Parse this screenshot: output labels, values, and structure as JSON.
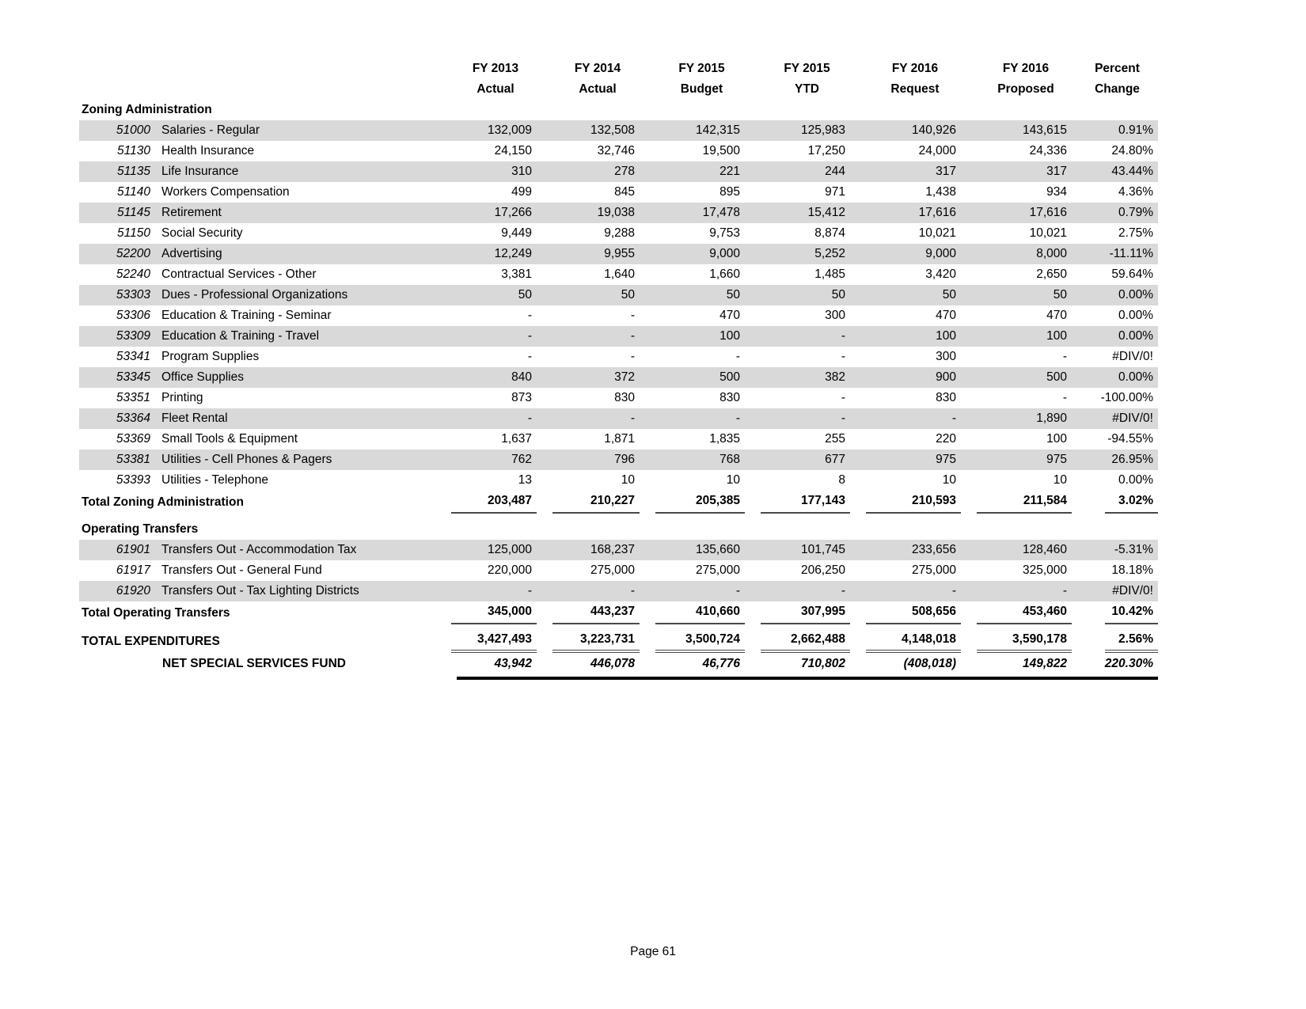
{
  "page": {
    "footer": "Page 61"
  },
  "colors": {
    "row_shade": "#d9d9d9",
    "total_rule": "#4a4a4a",
    "final_rule": "#000000"
  },
  "table": {
    "columns": [
      {
        "line1": "FY 2013",
        "line2": "Actual"
      },
      {
        "line1": "FY 2014",
        "line2": "Actual"
      },
      {
        "line1": "FY 2015",
        "line2": "Budget"
      },
      {
        "line1": "FY 2015",
        "line2": "YTD"
      },
      {
        "line1": "FY 2016",
        "line2": "Request"
      },
      {
        "line1": "FY 2016",
        "line2": "Proposed"
      },
      {
        "line1": "Percent",
        "line2": "Change"
      }
    ],
    "sections": [
      {
        "title": "Zoning Administration",
        "rows": [
          {
            "code": "51000",
            "name": "Salaries - Regular",
            "shaded": true,
            "values": [
              "132,009",
              "132,508",
              "142,315",
              "125,983",
              "140,926",
              "143,615",
              "0.91%"
            ]
          },
          {
            "code": "51130",
            "name": "Health Insurance",
            "shaded": false,
            "values": [
              "24,150",
              "32,746",
              "19,500",
              "17,250",
              "24,000",
              "24,336",
              "24.80%"
            ]
          },
          {
            "code": "51135",
            "name": "Life Insurance",
            "shaded": true,
            "values": [
              "310",
              "278",
              "221",
              "244",
              "317",
              "317",
              "43.44%"
            ]
          },
          {
            "code": "51140",
            "name": "Workers Compensation",
            "shaded": false,
            "values": [
              "499",
              "845",
              "895",
              "971",
              "1,438",
              "934",
              "4.36%"
            ]
          },
          {
            "code": "51145",
            "name": "Retirement",
            "shaded": true,
            "values": [
              "17,266",
              "19,038",
              "17,478",
              "15,412",
              "17,616",
              "17,616",
              "0.79%"
            ]
          },
          {
            "code": "51150",
            "name": "Social Security",
            "shaded": false,
            "values": [
              "9,449",
              "9,288",
              "9,753",
              "8,874",
              "10,021",
              "10,021",
              "2.75%"
            ]
          },
          {
            "code": "52200",
            "name": "Advertising",
            "shaded": true,
            "values": [
              "12,249",
              "9,955",
              "9,000",
              "5,252",
              "9,000",
              "8,000",
              "-11.11%"
            ]
          },
          {
            "code": "52240",
            "name": "Contractual Services - Other",
            "shaded": false,
            "values": [
              "3,381",
              "1,640",
              "1,660",
              "1,485",
              "3,420",
              "2,650",
              "59.64%"
            ]
          },
          {
            "code": "53303",
            "name": "Dues - Professional Organizations",
            "shaded": true,
            "values": [
              "50",
              "50",
              "50",
              "50",
              "50",
              "50",
              "0.00%"
            ]
          },
          {
            "code": "53306",
            "name": "Education & Training - Seminar",
            "shaded": false,
            "values": [
              "-",
              "-",
              "470",
              "300",
              "470",
              "470",
              "0.00%"
            ]
          },
          {
            "code": "53309",
            "name": "Education & Training - Travel",
            "shaded": true,
            "values": [
              "-",
              "-",
              "100",
              "-",
              "100",
              "100",
              "0.00%"
            ]
          },
          {
            "code": "53341",
            "name": "Program Supplies",
            "shaded": false,
            "values": [
              "-",
              "-",
              "-",
              "-",
              "300",
              "-",
              "#DIV/0!"
            ]
          },
          {
            "code": "53345",
            "name": "Office Supplies",
            "shaded": true,
            "values": [
              "840",
              "372",
              "500",
              "382",
              "900",
              "500",
              "0.00%"
            ]
          },
          {
            "code": "53351",
            "name": "Printing",
            "shaded": false,
            "values": [
              "873",
              "830",
              "830",
              "-",
              "830",
              "-",
              "-100.00%"
            ]
          },
          {
            "code": "53364",
            "name": "Fleet Rental",
            "shaded": true,
            "values": [
              "-",
              "-",
              "-",
              "-",
              "-",
              "1,890",
              "#DIV/0!"
            ]
          },
          {
            "code": "53369",
            "name": "Small Tools & Equipment",
            "shaded": false,
            "values": [
              "1,637",
              "1,871",
              "1,835",
              "255",
              "220",
              "100",
              "-94.55%"
            ]
          },
          {
            "code": "53381",
            "name": "Utilities - Cell Phones & Pagers",
            "shaded": true,
            "values": [
              "762",
              "796",
              "768",
              "677",
              "975",
              "975",
              "26.95%"
            ]
          },
          {
            "code": "53393",
            "name": "Utilities - Telephone",
            "shaded": false,
            "values": [
              "13",
              "10",
              "10",
              "8",
              "10",
              "10",
              "0.00%"
            ]
          }
        ],
        "total": {
          "label": "Total Zoning Administration",
          "values": [
            "203,487",
            "210,227",
            "205,385",
            "177,143",
            "210,593",
            "211,584",
            "3.02%"
          ]
        }
      },
      {
        "title": "Operating Transfers",
        "rows": [
          {
            "code": "61901",
            "name": "Transfers Out - Accommodation Tax",
            "shaded": true,
            "values": [
              "125,000",
              "168,237",
              "135,660",
              "101,745",
              "233,656",
              "128,460",
              "-5.31%"
            ]
          },
          {
            "code": "61917",
            "name": "Transfers Out - General Fund",
            "shaded": false,
            "values": [
              "220,000",
              "275,000",
              "275,000",
              "206,250",
              "275,000",
              "325,000",
              "18.18%"
            ]
          },
          {
            "code": "61920",
            "name": "Transfers Out - Tax Lighting Districts",
            "shaded": true,
            "values": [
              "-",
              "-",
              "-",
              "-",
              "-",
              "-",
              "#DIV/0!"
            ]
          }
        ],
        "total": {
          "label": "Total Operating Transfers",
          "values": [
            "345,000",
            "443,237",
            "410,660",
            "307,995",
            "508,656",
            "453,460",
            "10.42%"
          ]
        }
      }
    ],
    "grand_total": {
      "label": "TOTAL EXPENDITURES",
      "values": [
        "3,427,493",
        "3,223,731",
        "3,500,724",
        "2,662,488",
        "4,148,018",
        "3,590,178",
        "2.56%"
      ]
    },
    "net": {
      "label": "NET SPECIAL SERVICES FUND",
      "values": [
        "43,942",
        "446,078",
        "46,776",
        "710,802",
        "(408,018)",
        "149,822",
        "220.30%"
      ]
    }
  }
}
